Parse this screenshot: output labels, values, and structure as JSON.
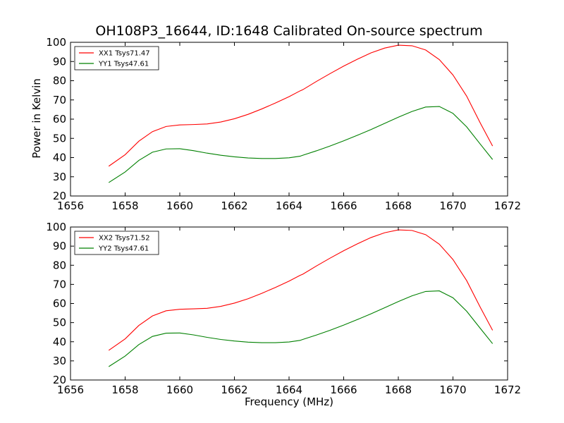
{
  "figure": {
    "title": "OH108P3_16644, ID:1648 Calibrated On-source spectrum",
    "ylabel": "Power in Kelvin",
    "xlabel": "Frequency (MHz)"
  },
  "chart_data": [
    {
      "type": "line",
      "xlim": [
        1656,
        1672
      ],
      "ylim": [
        20,
        100
      ],
      "xticks": [
        1656,
        1658,
        1660,
        1662,
        1664,
        1666,
        1668,
        1670,
        1672
      ],
      "yticks": [
        20,
        30,
        40,
        50,
        60,
        70,
        80,
        90,
        100
      ],
      "legend_position": "top-left",
      "series": [
        {
          "name": "XX1 Tsys71.47",
          "color": "#ff0000",
          "x": [
            1657.4,
            1658.0,
            1658.5,
            1659.0,
            1659.5,
            1660.0,
            1660.5,
            1661.0,
            1661.5,
            1662.0,
            1662.5,
            1663.0,
            1663.5,
            1664.0,
            1664.4,
            1664.5,
            1665.0,
            1665.5,
            1666.0,
            1666.5,
            1667.0,
            1667.5,
            1668.0,
            1668.5,
            1669.0,
            1669.5,
            1670.0,
            1670.5,
            1671.0,
            1671.45
          ],
          "y": [
            35.5,
            41.5,
            48.5,
            53.5,
            56.2,
            57.0,
            57.2,
            57.5,
            58.5,
            60.2,
            62.5,
            65.3,
            68.4,
            71.7,
            74.7,
            75.3,
            79.6,
            83.7,
            87.6,
            91.2,
            94.5,
            97.0,
            98.5,
            98.2,
            96.0,
            91.0,
            83.0,
            72.0,
            58.0,
            46.0
          ]
        },
        {
          "name": "YY1 Tsys47.61",
          "color": "#008000",
          "x": [
            1657.4,
            1658.0,
            1658.5,
            1659.0,
            1659.5,
            1660.0,
            1660.5,
            1661.0,
            1661.5,
            1662.0,
            1662.5,
            1663.0,
            1663.5,
            1664.0,
            1664.4,
            1664.5,
            1665.0,
            1665.5,
            1666.0,
            1666.5,
            1667.0,
            1667.5,
            1668.0,
            1668.5,
            1669.0,
            1669.5,
            1670.0,
            1670.5,
            1671.0,
            1671.45
          ],
          "y": [
            27.0,
            32.5,
            38.5,
            42.8,
            44.5,
            44.6,
            43.6,
            42.3,
            41.2,
            40.4,
            39.8,
            39.5,
            39.5,
            39.9,
            40.7,
            41.2,
            43.5,
            46.0,
            48.7,
            51.6,
            54.6,
            57.8,
            61.0,
            64.0,
            66.3,
            66.6,
            63.0,
            56.0,
            47.0,
            39.0
          ]
        }
      ]
    },
    {
      "type": "line",
      "xlim": [
        1656,
        1672
      ],
      "ylim": [
        20,
        100
      ],
      "xticks": [
        1656,
        1658,
        1660,
        1662,
        1664,
        1666,
        1668,
        1670,
        1672
      ],
      "yticks": [
        20,
        30,
        40,
        50,
        60,
        70,
        80,
        90,
        100
      ],
      "legend_position": "top-left",
      "series": [
        {
          "name": "XX2 Tsys71.52",
          "color": "#ff0000",
          "x": [
            1657.4,
            1658.0,
            1658.5,
            1659.0,
            1659.5,
            1660.0,
            1660.5,
            1661.0,
            1661.5,
            1662.0,
            1662.5,
            1663.0,
            1663.5,
            1664.0,
            1664.4,
            1664.5,
            1665.0,
            1665.5,
            1666.0,
            1666.5,
            1667.0,
            1667.5,
            1668.0,
            1668.5,
            1669.0,
            1669.5,
            1670.0,
            1670.5,
            1671.0,
            1671.45
          ],
          "y": [
            35.5,
            41.5,
            48.5,
            53.5,
            56.2,
            57.0,
            57.2,
            57.5,
            58.5,
            60.2,
            62.5,
            65.3,
            68.4,
            71.7,
            74.7,
            75.3,
            79.6,
            83.7,
            87.6,
            91.2,
            94.5,
            97.0,
            98.5,
            98.2,
            96.0,
            91.0,
            83.0,
            72.0,
            58.0,
            46.0
          ]
        },
        {
          "name": "YY2 Tsys47.61",
          "color": "#008000",
          "x": [
            1657.4,
            1658.0,
            1658.5,
            1659.0,
            1659.5,
            1660.0,
            1660.5,
            1661.0,
            1661.5,
            1662.0,
            1662.5,
            1663.0,
            1663.5,
            1664.0,
            1664.4,
            1664.5,
            1665.0,
            1665.5,
            1666.0,
            1666.5,
            1667.0,
            1667.5,
            1668.0,
            1668.5,
            1669.0,
            1669.5,
            1670.0,
            1670.5,
            1671.0,
            1671.45
          ],
          "y": [
            27.0,
            32.5,
            38.5,
            42.8,
            44.5,
            44.6,
            43.6,
            42.3,
            41.2,
            40.4,
            39.8,
            39.5,
            39.5,
            39.9,
            40.7,
            41.2,
            43.5,
            46.0,
            48.7,
            51.6,
            54.6,
            57.8,
            61.0,
            64.0,
            66.3,
            66.6,
            63.0,
            56.0,
            47.0,
            39.0
          ]
        }
      ]
    }
  ]
}
